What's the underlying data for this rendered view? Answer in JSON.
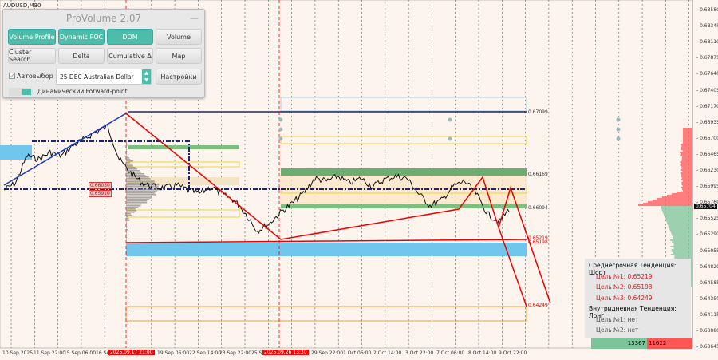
{
  "symbol": "AUDUSD,M30",
  "panel": {
    "title": "ProVolume 2.07",
    "minimize": "—",
    "buttons": [
      {
        "label": "Volume Profile",
        "active": true
      },
      {
        "label": "Dynamic POC",
        "active": true
      },
      {
        "label": "DOM",
        "active": true
      },
      {
        "label": "Volume",
        "active": false
      },
      {
        "label": "Cluster Search",
        "active": false
      },
      {
        "label": "Delta",
        "active": false
      },
      {
        "label": "Cumulative Δ",
        "active": false
      },
      {
        "label": "Map",
        "active": false
      }
    ],
    "autoselect_label": "Автовыбор",
    "autoselect_checked": true,
    "instrument": "25 DEC Australian Dollar",
    "settings_label": "Настройки",
    "toggle_label": "Динамический Forward-point",
    "accent": "#4dbdab"
  },
  "price_axis": [
    "0.68580",
    "0.68345",
    "0.68110",
    "0.67875",
    "0.67640",
    "0.67405",
    "0.67170",
    "0.66935",
    "0.66700",
    "0.66465",
    "0.66230",
    "0.65995",
    "0.65760",
    "0.65525",
    "0.65290",
    "0.65055",
    "0.64820",
    "0.64585",
    "0.64350",
    "0.64115",
    "0.63880",
    "0.63645"
  ],
  "current_price": "0.65704",
  "time_axis": [
    "10 Sep 2025",
    "11 Sep 22:00",
    "15 Sep 06:00",
    "16 Sep",
    "19 Sep 06:00",
    "22 Sep 14:00",
    "23 Sep 22:00",
    "25 Sep",
    "29 Sep 22:00",
    "1 Oct 06:00",
    "2 Oct 14:00",
    "3 Oct 22:00",
    "7 Oct 06:00",
    "8 Oct 14:00",
    "9 Oct 22:00"
  ],
  "time_markers": [
    "2025.09.17 21:00",
    "2025.09.26 13:30"
  ],
  "level_labels": {
    "blue": "0.67099",
    "green_top": "0.66169",
    "green_bottom": "0.66094",
    "red1": "0.65219",
    "red2": "0.65198",
    "target3": "0.64249",
    "left1": "0.66030",
    "left2": "0.65910"
  },
  "price_path": [
    0.6595,
    0.6605,
    0.6645,
    0.664,
    0.665,
    0.6645,
    0.666,
    0.667,
    0.668,
    0.6688,
    0.664,
    0.662,
    0.6605,
    0.66,
    0.6598,
    0.6602,
    0.6595,
    0.659,
    0.66,
    0.6588,
    0.658,
    0.656,
    0.6535,
    0.6545,
    0.6562,
    0.6575,
    0.659,
    0.6612,
    0.6608,
    0.6615,
    0.6605,
    0.6612,
    0.66,
    0.661,
    0.6615,
    0.6612,
    0.659,
    0.6572,
    0.658,
    0.66,
    0.6608,
    0.659,
    0.656,
    0.6548,
    0.657
  ],
  "info": {
    "medium_trend": "Среднесрочная Тенденция: Шорт",
    "m_targets": [
      "Цель №1: 0.65219",
      "Цель №2: 0.65198",
      "Цель №3: 0.64249"
    ],
    "intraday_trend": "Внутридневная Тенденция: Лонг",
    "i_targets": [
      "Цель №1: нет",
      "Цель №2: нет"
    ]
  },
  "volume_buy": "13367",
  "volume_sell": "11622",
  "colors": {
    "buy": "#7cc49a",
    "sell": "#f55",
    "trend": "#e00",
    "level_blue": "#1a237e",
    "zone_green": "#5fae6a",
    "zone_blue": "#70c6ec",
    "zone_yellow": "#f5e26a"
  }
}
